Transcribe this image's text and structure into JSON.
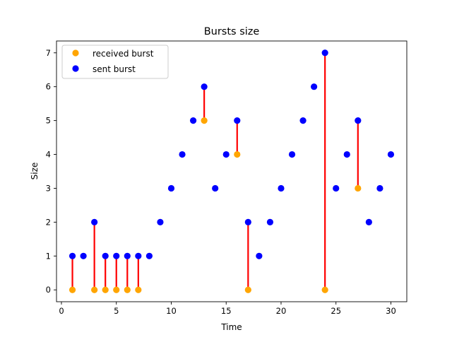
{
  "chart_data": {
    "type": "scatter",
    "title": "Bursts size",
    "xlabel": "Time",
    "ylabel": "Size",
    "xlim": [
      -0.45,
      31.45
    ],
    "ylim": [
      -0.35,
      7.35
    ],
    "xticks": [
      "0",
      "5",
      "10",
      "15",
      "20",
      "25",
      "30"
    ],
    "yticks": [
      "0",
      "1",
      "2",
      "3",
      "4",
      "5",
      "6",
      "7"
    ],
    "grid": false,
    "legend": "top-left",
    "series": [
      {
        "name": "received burst",
        "color": "#ffa500",
        "points": [
          [
            1,
            0
          ],
          [
            3,
            0
          ],
          [
            4,
            0
          ],
          [
            5,
            0
          ],
          [
            6,
            0
          ],
          [
            7,
            0
          ],
          [
            13,
            5
          ],
          [
            16,
            4
          ],
          [
            17,
            0
          ],
          [
            24,
            0
          ],
          [
            27,
            3
          ]
        ]
      },
      {
        "name": "sent burst",
        "color": "#0000ff",
        "points": [
          [
            1,
            1
          ],
          [
            2,
            1
          ],
          [
            3,
            2
          ],
          [
            4,
            1
          ],
          [
            5,
            1
          ],
          [
            6,
            1
          ],
          [
            7,
            1
          ],
          [
            8,
            1
          ],
          [
            9,
            2
          ],
          [
            10,
            3
          ],
          [
            11,
            4
          ],
          [
            12,
            5
          ],
          [
            13,
            6
          ],
          [
            14,
            3
          ],
          [
            15,
            4
          ],
          [
            16,
            5
          ],
          [
            17,
            2
          ],
          [
            18,
            1
          ],
          [
            19,
            2
          ],
          [
            20,
            3
          ],
          [
            21,
            4
          ],
          [
            22,
            5
          ],
          [
            23,
            6
          ],
          [
            24,
            7
          ],
          [
            25,
            3
          ],
          [
            26,
            4
          ],
          [
            27,
            5
          ],
          [
            28,
            2
          ],
          [
            29,
            3
          ],
          [
            30,
            4
          ]
        ]
      }
    ],
    "loss_lines": {
      "color": "#ff0000",
      "segments": [
        [
          1,
          0,
          1
        ],
        [
          3,
          0,
          2
        ],
        [
          4,
          0,
          1
        ],
        [
          5,
          0,
          1
        ],
        [
          6,
          0,
          1
        ],
        [
          7,
          0,
          1
        ],
        [
          13,
          5,
          6
        ],
        [
          16,
          4,
          5
        ],
        [
          17,
          0,
          2
        ],
        [
          24,
          0,
          7
        ],
        [
          27,
          3,
          5
        ]
      ]
    }
  }
}
